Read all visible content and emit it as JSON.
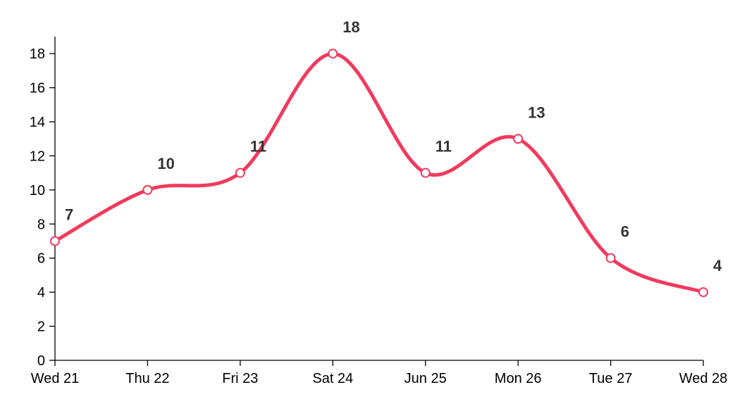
{
  "chart_data": {
    "type": "line",
    "categories": [
      "Wed 21",
      "Thu 22",
      "Fri 23",
      "Sat 24",
      "Jun 25",
      "Mon 26",
      "Tue 27",
      "Wed 28"
    ],
    "values": [
      7,
      10,
      11,
      18,
      11,
      13,
      6,
      4
    ],
    "title": "",
    "xlabel": "",
    "ylabel": "",
    "ylim": [
      0,
      19
    ],
    "yticks": [
      0,
      2,
      4,
      6,
      8,
      10,
      12,
      14,
      16,
      18
    ],
    "grid": false,
    "legend": "none",
    "curve": "smooth",
    "line_color": "#f03b5d",
    "point_fill": "#ffffff",
    "label_color": "#333333"
  }
}
